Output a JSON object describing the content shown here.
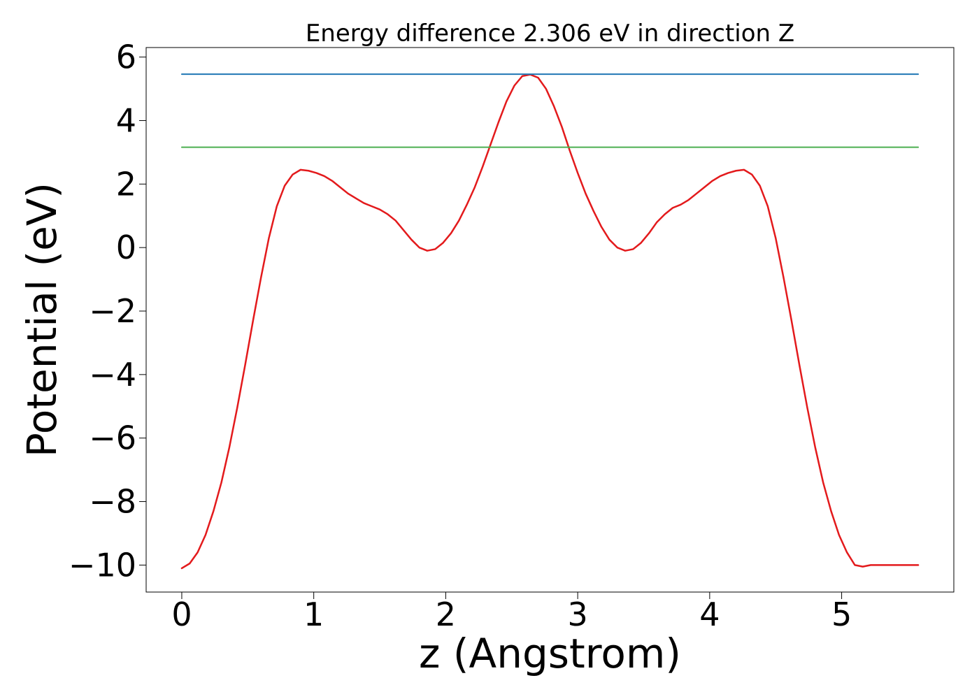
{
  "chart_data": {
    "type": "line",
    "title": "Energy difference 2.306 eV in direction Z",
    "xlabel": "z (Angstrom)",
    "ylabel": "Potential (eV)",
    "xlim": [
      -0.27,
      5.85
    ],
    "ylim": [
      -10.85,
      6.3
    ],
    "x_ticks": [
      0,
      1,
      2,
      3,
      4,
      5
    ],
    "x_tick_labels": [
      "0",
      "1",
      "2",
      "3",
      "4",
      "5"
    ],
    "y_ticks": [
      6,
      4,
      2,
      0,
      -2,
      -4,
      -6,
      -8,
      -10
    ],
    "y_tick_labels": [
      "6",
      "4",
      "2",
      "0",
      "−2",
      "−4",
      "−6",
      "−8",
      "−10"
    ],
    "grid": false,
    "colors": {
      "potential": "#e31a1c",
      "upper_line": "#1f77b4",
      "lower_line": "#4caf50"
    },
    "series": [
      {
        "x": [
          0,
          0.06,
          0.12,
          0.18,
          0.24,
          0.3,
          0.36,
          0.42,
          0.48,
          0.54,
          0.6,
          0.66,
          0.72,
          0.78,
          0.84,
          0.9,
          0.96,
          1.02,
          1.08,
          1.14,
          1.2,
          1.26,
          1.32,
          1.38,
          1.44,
          1.5,
          1.56,
          1.62,
          1.68,
          1.74,
          1.8,
          1.86,
          1.92,
          1.98,
          2.04,
          2.1,
          2.16,
          2.22,
          2.28,
          2.34,
          2.4,
          2.46,
          2.52,
          2.58,
          2.64,
          2.7,
          2.76,
          2.82,
          2.88,
          2.94,
          3.0,
          3.06,
          3.12,
          3.18,
          3.24,
          3.3,
          3.36,
          3.42,
          3.48,
          3.54,
          3.6,
          3.66,
          3.72,
          3.78,
          3.84,
          3.9,
          3.96,
          4.02,
          4.08,
          4.14,
          4.2,
          4.26,
          4.32,
          4.38,
          4.44,
          4.5,
          4.56,
          4.62,
          4.68,
          4.74,
          4.8,
          4.86,
          4.92,
          4.98,
          5.04,
          5.1,
          5.16,
          5.22,
          5.28,
          5.34,
          5.4,
          5.46,
          5.52,
          5.58
        ],
        "values": [
          -10.1,
          -9.95,
          -9.6,
          -9.05,
          -8.3,
          -7.4,
          -6.3,
          -5.05,
          -3.7,
          -2.3,
          -0.95,
          0.3,
          1.3,
          1.95,
          2.3,
          2.45,
          2.42,
          2.35,
          2.25,
          2.1,
          1.9,
          1.7,
          1.55,
          1.4,
          1.3,
          1.2,
          1.05,
          0.85,
          0.55,
          0.25,
          0.0,
          -0.1,
          -0.05,
          0.15,
          0.45,
          0.85,
          1.35,
          1.9,
          2.55,
          3.25,
          3.95,
          4.6,
          5.1,
          5.4,
          5.45,
          5.35,
          5.0,
          4.45,
          3.8,
          3.05,
          2.35,
          1.7,
          1.15,
          0.65,
          0.25,
          0.0,
          -0.1,
          -0.05,
          0.15,
          0.45,
          0.8,
          1.05,
          1.25,
          1.35,
          1.5,
          1.7,
          1.9,
          2.1,
          2.25,
          2.35,
          2.42,
          2.45,
          2.3,
          1.95,
          1.3,
          0.3,
          -0.95,
          -2.3,
          -3.7,
          -5.05,
          -6.3,
          -7.4,
          -8.3,
          -9.05,
          -9.6,
          -10.0,
          -10.05,
          -10.0,
          -10.0,
          -10.0,
          -10.0,
          -10.0,
          -10.0,
          -10.0
        ]
      },
      {
        "x": [
          0,
          5.58
        ],
        "values": [
          5.46,
          5.46
        ]
      },
      {
        "x": [
          0,
          5.58
        ],
        "values": [
          3.16,
          3.16
        ]
      }
    ]
  }
}
